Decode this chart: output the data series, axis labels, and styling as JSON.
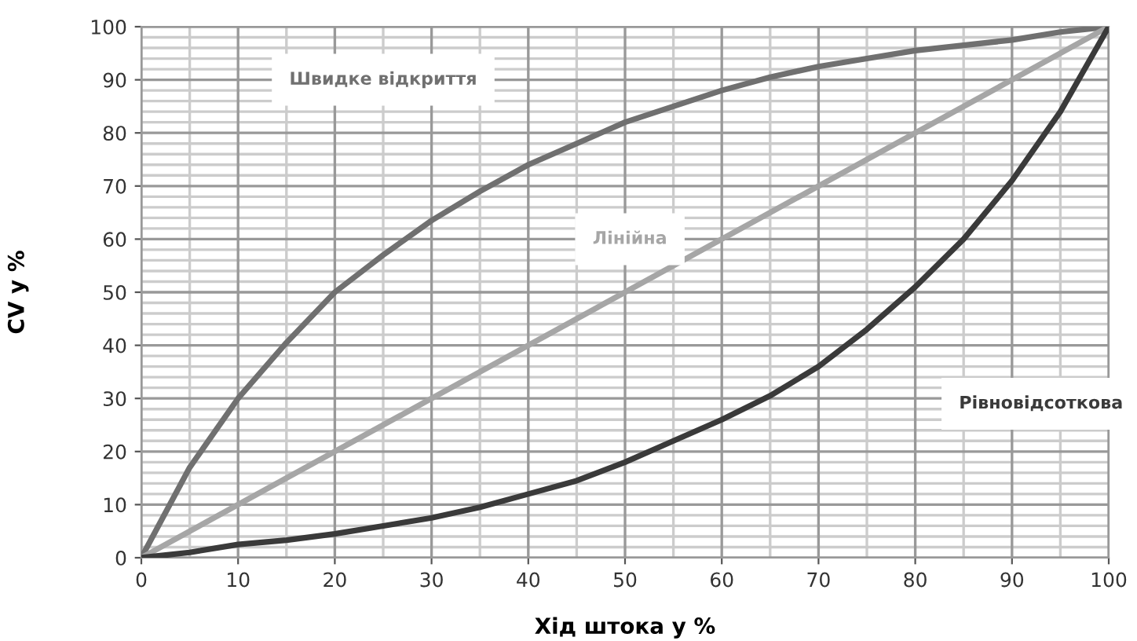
{
  "chart_data": {
    "type": "line",
    "xlabel": "Хід штока у %",
    "ylabel": "CV у %",
    "x": [
      0,
      5,
      10,
      15,
      20,
      25,
      30,
      35,
      40,
      45,
      50,
      55,
      60,
      65,
      70,
      75,
      80,
      85,
      90,
      95,
      100
    ],
    "series": [
      {
        "name": "Швидке відкриття",
        "color": "#707070",
        "values": [
          0,
          17,
          30,
          40.5,
          50,
          57,
          63.5,
          69,
          74,
          78,
          82,
          85,
          88,
          90.5,
          92.5,
          94,
          95.5,
          96.5,
          97.5,
          99,
          100
        ]
      },
      {
        "name": "Лінійна",
        "color": "#a6a6a6",
        "x": [
          0,
          100
        ],
        "values": [
          0,
          100
        ]
      },
      {
        "name": "Рівновідсоткова",
        "color": "#3a3a3a",
        "values": [
          0,
          1,
          2.5,
          3.3,
          4.5,
          6,
          7.5,
          9.5,
          12,
          14.5,
          18,
          22,
          26,
          30.5,
          36,
          43,
          51,
          60,
          71,
          84,
          100
        ]
      }
    ],
    "xlim": [
      0,
      100
    ],
    "ylim": [
      0,
      100
    ],
    "xticks": [
      0,
      10,
      20,
      30,
      40,
      50,
      60,
      70,
      80,
      90,
      100
    ],
    "yticks": [
      0,
      10,
      20,
      30,
      40,
      50,
      60,
      70,
      80,
      90,
      100
    ],
    "grid": true,
    "legend": false,
    "marker": "none",
    "line_style": "solid"
  }
}
